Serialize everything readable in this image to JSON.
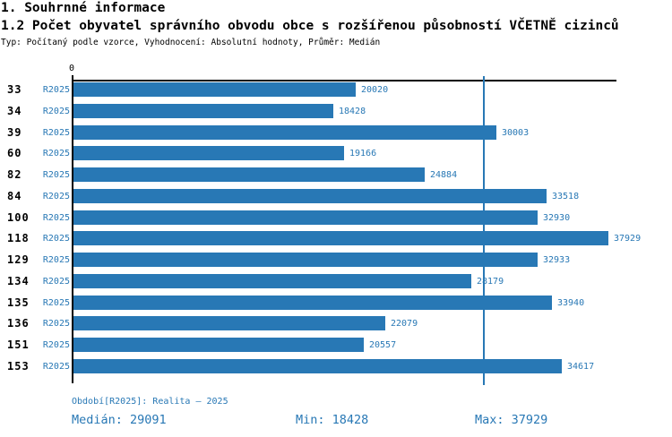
{
  "header": {
    "title1": "1. Souhrnné informace",
    "title2": "1.2 Počet obyvatel správního obvodu obce s rozšířenou působností VČETNĚ cizinců",
    "subtitle": "Typ: Počítaný podle vzorce, Vyhodnocení: Absolutní hodnoty, Průměr: Medián"
  },
  "chart_data": {
    "type": "bar",
    "orientation": "horizontal",
    "title": "1.2 Počet obyvatel správního obvodu obce s rozšířenou působností VČETNĚ cizinců",
    "origin_tick_label": "0",
    "categories": [
      "33",
      "34",
      "39",
      "60",
      "82",
      "84",
      "100",
      "118",
      "129",
      "134",
      "135",
      "136",
      "151",
      "153"
    ],
    "series": [
      {
        "name": "R2025",
        "values": [
          20020,
          18428,
          30003,
          19166,
          24884,
          33518,
          32930,
          37929,
          32933,
          28179,
          33940,
          22079,
          20557,
          34617
        ]
      }
    ],
    "xlim": [
      0,
      38430
    ],
    "median_value": 29091,
    "min_value": 18428,
    "max_value": 37929,
    "grid": false,
    "legend_position": "none"
  },
  "colors": {
    "accent": "#2878b5",
    "axis": "#000000"
  },
  "footer": {
    "period": "Období[R2025]: Realita – 2025",
    "median": "Medián: 29091",
    "min": "Min: 18428",
    "max": "Max: 37929"
  }
}
